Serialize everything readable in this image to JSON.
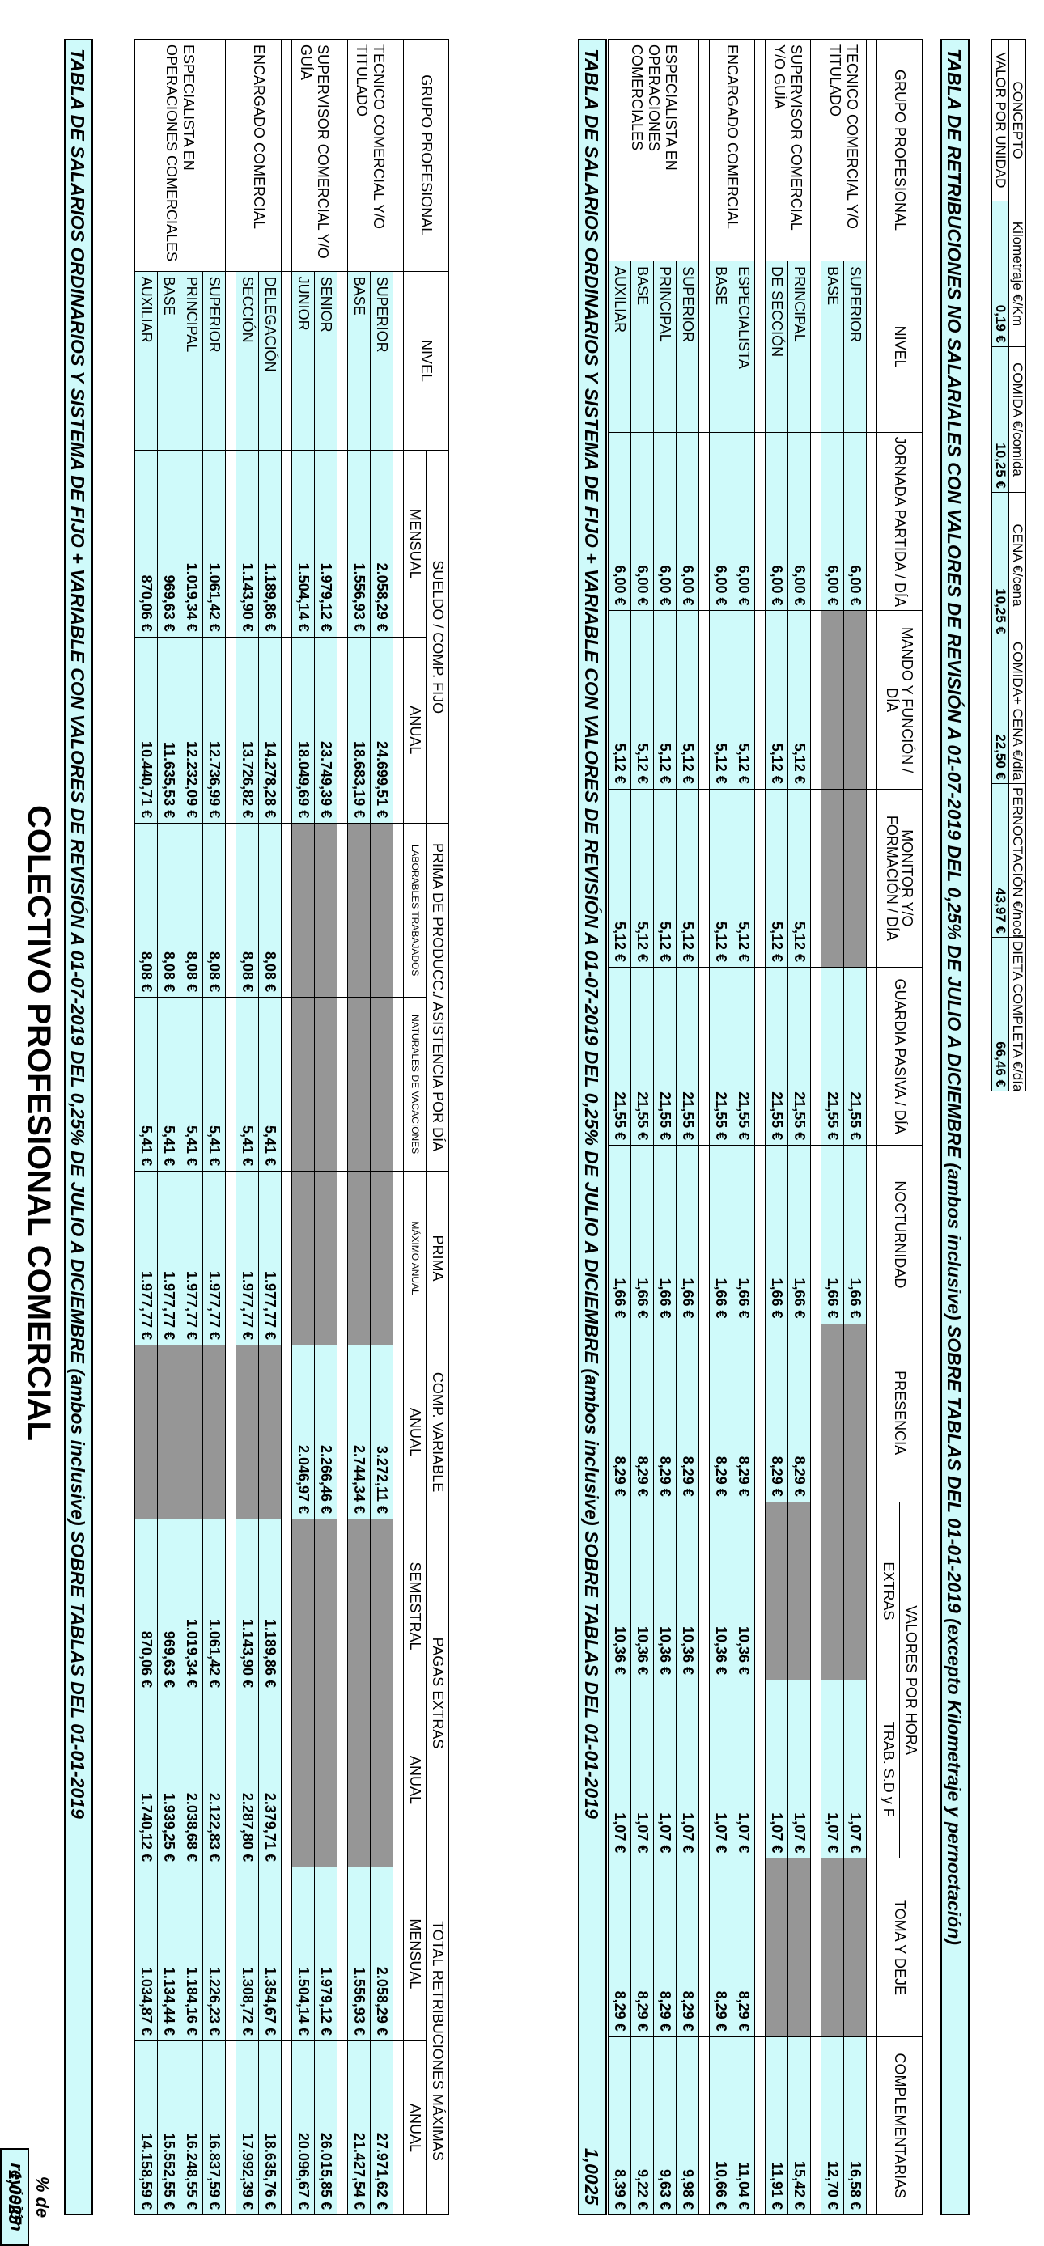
{
  "title": "COLECTIVO PROFESIONAL COMERCIAL",
  "revision": {
    "label": "% de revisión",
    "value": "1,0025"
  },
  "table1": {
    "band_title": "TABLA DE SALARIOS ORDINARIOS Y SISTEMA DE FIJO + VARIABLE CON VALORES DE REVISIÓN A 01-07-2019 DEL 0,25% DE JULIO A DICIEMBRE (ambos inclusive) SOBRE TABLAS DEL 01-01-2019",
    "headers": {
      "grupo": "GRUPO PROFESIONAL",
      "nivel": "NIVEL",
      "sueldo": "SUELDO / COMP. FIJO",
      "mensual": "MENSUAL",
      "anual": "ANUAL",
      "prima_asist": "PRIMA DE PRODUCC./ ASISTENCIA POR DÍA",
      "laborables": "LABORABLES TRABAJADOS",
      "naturales": "NATURALES DE VACACIONES",
      "prima": "PRIMA",
      "maximo_anual": "MÁXIMO ANUAL",
      "comp_variable": "COMP. VARIABLE",
      "pagas_extras": "PAGAS EXTRAS",
      "semestral": "SEMESTRAL",
      "total": "TOTAL RETRIBUCIONES MÁXIMAS"
    },
    "groups": [
      {
        "name": "TECNICO COMERCIAL Y/O TITULADO",
        "rows": [
          {
            "nivel": "SUPERIOR",
            "m": "2.058,29 €",
            "a": "24.699,51 €",
            "lab": "",
            "nat": "",
            "prima": "",
            "cv": "3.272,11 €",
            "sem": "",
            "pa": "",
            "tm": "2.058,29 €",
            "ta": "27.971,62 €",
            "shade": [
              0,
              0,
              1,
              1,
              1,
              0,
              1,
              1,
              0,
              0
            ]
          },
          {
            "nivel": "BASE",
            "m": "1.556,93 €",
            "a": "18.683,19 €",
            "lab": "",
            "nat": "",
            "prima": "",
            "cv": "2.744,34 €",
            "sem": "",
            "pa": "",
            "tm": "1.556,93 €",
            "ta": "21.427,54 €",
            "shade": [
              0,
              0,
              1,
              1,
              1,
              0,
              1,
              1,
              0,
              0
            ]
          }
        ]
      },
      {
        "name": "SUPERVISOR COMERCIAL Y/O GUÍA",
        "rows": [
          {
            "nivel": "SENIOR",
            "m": "1.979,12 €",
            "a": "23.749,39 €",
            "lab": "",
            "nat": "",
            "prima": "",
            "cv": "2.266,46 €",
            "sem": "",
            "pa": "",
            "tm": "1.979,12 €",
            "ta": "26.015,85 €",
            "shade": [
              0,
              0,
              1,
              1,
              1,
              0,
              1,
              1,
              0,
              0
            ]
          },
          {
            "nivel": "JUNIOR",
            "m": "1.504,14 €",
            "a": "18.049,69 €",
            "lab": "",
            "nat": "",
            "prima": "",
            "cv": "2.046,97 €",
            "sem": "",
            "pa": "",
            "tm": "1.504,14 €",
            "ta": "20.096,67 €",
            "shade": [
              0,
              0,
              1,
              1,
              1,
              0,
              1,
              1,
              0,
              0
            ]
          }
        ]
      },
      {
        "name": "ENCARGADO COMERCIAL",
        "rows": [
          {
            "nivel": "DELEGACIÓN",
            "m": "1.189,86 €",
            "a": "14.278,28 €",
            "lab": "8,08 €",
            "nat": "5,41 €",
            "prima": "1.977,77 €",
            "cv": "",
            "sem": "1.189,86 €",
            "pa": "2.379,71 €",
            "tm": "1.354,67 €",
            "ta": "18.635,76 €",
            "shade": [
              0,
              0,
              0,
              0,
              0,
              1,
              0,
              0,
              0,
              0
            ]
          },
          {
            "nivel": "SECCIÓN",
            "m": "1.143,90 €",
            "a": "13.726,82 €",
            "lab": "8,08 €",
            "nat": "5,41 €",
            "prima": "1.977,77 €",
            "cv": "",
            "sem": "1.143,90 €",
            "pa": "2.287,80 €",
            "tm": "1.308,72 €",
            "ta": "17.992,39 €",
            "shade": [
              0,
              0,
              0,
              0,
              0,
              1,
              0,
              0,
              0,
              0
            ]
          }
        ]
      },
      {
        "name": "ESPECIALISTA EN OPERACIONES COMERCIALES",
        "rows": [
          {
            "nivel": "SUPERIOR",
            "m": "1.061,42 €",
            "a": "12.736,99 €",
            "lab": "8,08 €",
            "nat": "5,41 €",
            "prima": "1.977,77 €",
            "cv": "",
            "sem": "1.061,42 €",
            "pa": "2.122,83 €",
            "tm": "1.226,23 €",
            "ta": "16.837,59 €",
            "shade": [
              0,
              0,
              0,
              0,
              0,
              1,
              0,
              0,
              0,
              0
            ]
          },
          {
            "nivel": "PRINCIPAL",
            "m": "1.019,34 €",
            "a": "12.232,09 €",
            "lab": "8,08 €",
            "nat": "5,41 €",
            "prima": "1.977,77 €",
            "cv": "",
            "sem": "1.019,34 €",
            "pa": "2.038,68 €",
            "tm": "1.184,16 €",
            "ta": "16.248,55 €",
            "shade": [
              0,
              0,
              0,
              0,
              0,
              1,
              0,
              0,
              0,
              0
            ]
          },
          {
            "nivel": "BASE",
            "m": "969,63 €",
            "a": "11.635,53 €",
            "lab": "8,08 €",
            "nat": "5,41 €",
            "prima": "1.977,77 €",
            "cv": "",
            "sem": "969,63 €",
            "pa": "1.939,25 €",
            "tm": "1.134,44 €",
            "ta": "15.552,55 €",
            "shade": [
              0,
              0,
              0,
              0,
              0,
              1,
              0,
              0,
              0,
              0
            ]
          },
          {
            "nivel": "AUXILIAR",
            "m": "870,06 €",
            "a": "10.440,71 €",
            "lab": "8,08 €",
            "nat": "5,41 €",
            "prima": "1.977,77 €",
            "cv": "",
            "sem": "870,06 €",
            "pa": "1.740,12 €",
            "tm": "1.034,87 €",
            "ta": "14.158,59 €",
            "shade": [
              0,
              0,
              0,
              0,
              0,
              1,
              0,
              0,
              0,
              0
            ]
          }
        ]
      }
    ]
  },
  "table2": {
    "band_title": "TABLA DE SALARIOS ORDINARIOS Y SISTEMA DE FIJO + VARIABLE CON VALORES DE REVISIÓN A 01-07-2019 DEL 0,25% DE JULIO A DICIEMBRE (ambos inclusive) SOBRE TABLAS DEL 01-01-2019",
    "revision_value": "1,0025",
    "headers": {
      "grupo": "GRUPO PROFESIONAL",
      "nivel": "NIVEL",
      "jornada": "JORNADA PARTIDA / DÍA",
      "mando": "MANDO Y FUNCIÓN / DÍA",
      "monitor": "MONITOR Y/O FORMACIÓN / DÍA",
      "guardia": "GUARDIA PASIVA / DÍA",
      "nocturnidad": "NOCTURNIDAD",
      "presencia": "PRESENCIA",
      "valores_hora": "VALORES POR HORA",
      "extras": "EXTRAS",
      "trab": "TRAB. S.D y F",
      "toma": "TOMA Y DEJE",
      "complementarias": "COMPLEMENTARIAS"
    },
    "groups": [
      {
        "name": "TECNICO COMERCIAL Y/O TITULADO",
        "rows": [
          {
            "nivel": "SUPERIOR",
            "v": [
              "6,00 €",
              "",
              "",
              "21,55 €",
              "1,66 €",
              "",
              "",
              "1,07 €",
              "",
              "16,58 €"
            ],
            "shade": [
              0,
              1,
              1,
              0,
              0,
              1,
              1,
              0,
              1,
              0
            ]
          },
          {
            "nivel": "BASE",
            "v": [
              "6,00 €",
              "",
              "",
              "21,55 €",
              "1,66 €",
              "",
              "",
              "1,07 €",
              "",
              "12,70 €"
            ],
            "shade": [
              0,
              1,
              1,
              0,
              0,
              1,
              1,
              0,
              1,
              0
            ]
          }
        ]
      },
      {
        "name": "SUPERVISOR COMERCIAL Y/O GUÍA",
        "rows": [
          {
            "nivel": "PRINCIPAL",
            "v": [
              "6,00 €",
              "5,12 €",
              "5,12 €",
              "21,55 €",
              "1,66 €",
              "8,29 €",
              "",
              "1,07 €",
              "",
              "15,42 €"
            ],
            "shade": [
              0,
              0,
              0,
              0,
              0,
              0,
              1,
              0,
              1,
              0
            ]
          },
          {
            "nivel": "DE SECCIÓN",
            "v": [
              "6,00 €",
              "5,12 €",
              "5,12 €",
              "21,55 €",
              "1,66 €",
              "8,29 €",
              "",
              "1,07 €",
              "",
              "11,91 €"
            ],
            "shade": [
              0,
              0,
              0,
              0,
              0,
              0,
              1,
              0,
              1,
              0
            ]
          }
        ]
      },
      {
        "name": "ENCARGADO COMERCIAL",
        "rows": [
          {
            "nivel": "ESPECIALISTA",
            "v": [
              "6,00 €",
              "5,12 €",
              "5,12 €",
              "21,55 €",
              "1,66 €",
              "8,29 €",
              "10,36 €",
              "1,07 €",
              "8,29 €",
              "11,04 €"
            ],
            "shade": [
              0,
              0,
              0,
              0,
              0,
              0,
              0,
              0,
              0,
              0
            ]
          },
          {
            "nivel": "BASE",
            "v": [
              "6,00 €",
              "5,12 €",
              "5,12 €",
              "21,55 €",
              "1,66 €",
              "8,29 €",
              "10,36 €",
              "1,07 €",
              "8,29 €",
              "10,66 €"
            ],
            "shade": [
              0,
              0,
              0,
              0,
              0,
              0,
              0,
              0,
              0,
              0
            ]
          }
        ]
      },
      {
        "name": "ESPECIALISTA EN OPERACIONES COMERCIALES",
        "rows": [
          {
            "nivel": "SUPERIOR",
            "v": [
              "6,00 €",
              "5,12 €",
              "5,12 €",
              "21,55 €",
              "1,66 €",
              "8,29 €",
              "10,36 €",
              "1,07 €",
              "8,29 €",
              "9,98 €"
            ],
            "shade": [
              0,
              0,
              0,
              0,
              0,
              0,
              0,
              0,
              0,
              0
            ]
          },
          {
            "nivel": "PRINCIPAL",
            "v": [
              "6,00 €",
              "5,12 €",
              "5,12 €",
              "21,55 €",
              "1,66 €",
              "8,29 €",
              "10,36 €",
              "1,07 €",
              "8,29 €",
              "9,63 €"
            ],
            "shade": [
              0,
              0,
              0,
              0,
              0,
              0,
              0,
              0,
              0,
              0
            ]
          },
          {
            "nivel": "BASE",
            "v": [
              "6,00 €",
              "5,12 €",
              "5,12 €",
              "21,55 €",
              "1,66 €",
              "8,29 €",
              "10,36 €",
              "1,07 €",
              "8,29 €",
              "9,22 €"
            ],
            "shade": [
              0,
              0,
              0,
              0,
              0,
              0,
              0,
              0,
              0,
              0
            ]
          },
          {
            "nivel": "AUXILIAR",
            "v": [
              "6,00 €",
              "5,12 €",
              "5,12 €",
              "21,55 €",
              "1,66 €",
              "8,29 €",
              "10,36 €",
              "1,07 €",
              "8,29 €",
              "8,39 €"
            ],
            "shade": [
              0,
              0,
              0,
              0,
              0,
              0,
              0,
              0,
              0,
              0
            ]
          }
        ]
      }
    ]
  },
  "table3": {
    "band_title": "TABLA DE RETRIBUCIONES NO SALARIALES CON VALORES DE REVISIÓN A 01-07-2019 DEL 0,25% DE JULIO A DICIEMBRE (ambos inclusive) SOBRE TABLAS DEL 01-01-2019 (excepto Kilometraje y pernoctación)",
    "headers": [
      "CONCEPTO",
      "Kilometraje €/Km",
      "COMIDA €/comida",
      "CENA €/cena",
      "COMIDA+ CENA €/día",
      "PERNOCTACIÓN €/noche",
      "DIETA COMPLETA €/día"
    ],
    "row_label": "VALOR POR UNIDAD",
    "values": [
      "0,19 €",
      "10,25 €",
      "10,25 €",
      "22,50 €",
      "43,97 €",
      "66,46 €"
    ]
  },
  "colors": {
    "accent": "#cffafa",
    "shade": "#969696"
  }
}
